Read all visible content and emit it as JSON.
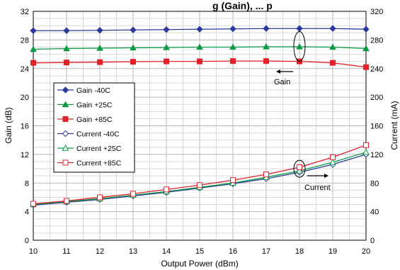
{
  "chart_data": {
    "type": "line",
    "title": "g (Gain), ... p",
    "xlabel": "Output Power (dBm)",
    "ylabel": "Gain (dB)",
    "y2label": "Current (mA)",
    "x": [
      10,
      11,
      12,
      13,
      14,
      15,
      16,
      17,
      18,
      19,
      20
    ],
    "xlim": [
      10,
      20
    ],
    "ylim": [
      0,
      32
    ],
    "y2lim": [
      0,
      320
    ],
    "xticks": [
      "10",
      "11",
      "12",
      "13",
      "14",
      "15",
      "16",
      "17",
      "18",
      "19",
      "20"
    ],
    "yticks": [
      "0",
      "4",
      "8",
      "12",
      "16",
      "20",
      "24",
      "28",
      "32"
    ],
    "y2ticks": [
      "0",
      "40",
      "80",
      "120",
      "160",
      "200",
      "240",
      "280",
      "320"
    ],
    "grid": true,
    "legend_position": "left-middle",
    "series": [
      {
        "name": "Gain -40C",
        "axis": "left",
        "color": "#2b3a9b",
        "marker": "diamond",
        "fill": true,
        "values": [
          29.3,
          29.3,
          29.35,
          29.4,
          29.45,
          29.5,
          29.55,
          29.6,
          29.6,
          29.6,
          29.5
        ]
      },
      {
        "name": "Gain +25C",
        "axis": "left",
        "color": "#0a9a44",
        "marker": "triangle",
        "fill": true,
        "values": [
          26.7,
          26.8,
          26.85,
          26.9,
          26.95,
          27.0,
          27.0,
          27.05,
          27.05,
          27.0,
          26.8
        ]
      },
      {
        "name": "Gain +85C",
        "axis": "left",
        "color": "#e4202b",
        "marker": "square",
        "fill": true,
        "values": [
          24.8,
          24.85,
          24.9,
          24.95,
          25.0,
          25.0,
          25.05,
          25.05,
          25.0,
          24.8,
          24.2
        ]
      },
      {
        "name": "Current -40C",
        "axis": "right",
        "color": "#2b3a9b",
        "marker": "diamond",
        "fill": false,
        "values": [
          49,
          53,
          57,
          62,
          67,
          73,
          79,
          86,
          95,
          106,
          120
        ]
      },
      {
        "name": "Current +25C",
        "axis": "right",
        "color": "#0a9a44",
        "marker": "triangle",
        "fill": false,
        "values": [
          50,
          54,
          58,
          63,
          68,
          74,
          80,
          88,
          97,
          109,
          123
        ]
      },
      {
        "name": "Current +85C",
        "axis": "right",
        "color": "#e4202b",
        "marker": "square",
        "fill": false,
        "values": [
          51,
          55,
          60,
          65,
          71,
          77,
          84,
          92,
          102,
          116,
          133
        ]
      }
    ],
    "annotations": [
      "Gain",
      "Current"
    ]
  }
}
